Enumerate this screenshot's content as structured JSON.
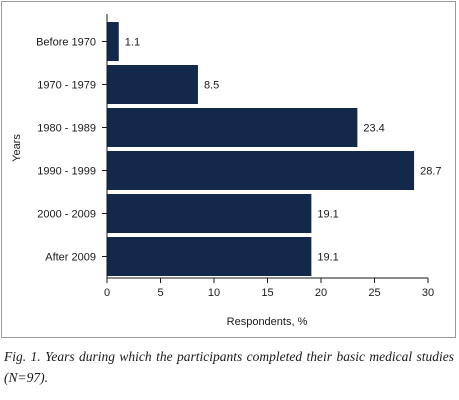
{
  "chart_data": {
    "type": "bar",
    "orientation": "horizontal",
    "categories": [
      "Before 1970",
      "1970 - 1979",
      "1980 - 1989",
      "1990 - 1999",
      "2000 - 2009",
      "After 2009"
    ],
    "values": [
      1.1,
      8.5,
      23.4,
      28.7,
      19.1,
      19.1
    ],
    "data_labels": [
      "1.1",
      "8.5",
      "23.4",
      "28.7",
      "19.1",
      "19.1"
    ],
    "xlabel": "Respondents, %",
    "ylabel": "Years",
    "xlim": [
      0,
      30
    ],
    "xticks": [
      0,
      5,
      10,
      15,
      20,
      25,
      30
    ],
    "grid": false,
    "bar_color": "#13294b"
  },
  "caption": "Fig. 1. Years during which the participants completed their basic medical studies (N=97)."
}
